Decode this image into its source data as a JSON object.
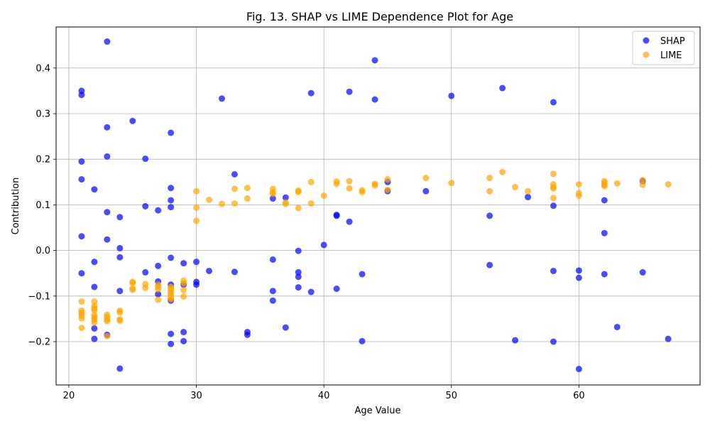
{
  "chart_data": {
    "type": "scatter",
    "title": "Fig. 13. SHAP vs LIME Dependence Plot for Age",
    "xlabel": "Age Value",
    "ylabel": "Contribution",
    "xlim": [
      19,
      69.5
    ],
    "ylim": [
      -0.295,
      0.49
    ],
    "xticks": [
      20,
      30,
      40,
      50,
      60
    ],
    "yticks": [
      -0.2,
      -0.1,
      0.0,
      0.1,
      0.2,
      0.3,
      0.4
    ],
    "ytick_labels": [
      "−0.2",
      "−0.1",
      "0.0",
      "0.1",
      "0.2",
      "0.3",
      "0.4"
    ],
    "grid": true,
    "legend_position": "top-right",
    "series": [
      {
        "name": "SHAP",
        "color": "#0000ff",
        "x": [
          21,
          21,
          21,
          21,
          21,
          21,
          22,
          22,
          22,
          22,
          22,
          23,
          23,
          23,
          23,
          23,
          23,
          24,
          24,
          24,
          24,
          24,
          25,
          26,
          26,
          26,
          27,
          27,
          27,
          27,
          28,
          28,
          28,
          28,
          28,
          28,
          28,
          28,
          28,
          29,
          29,
          29,
          29,
          30,
          30,
          30,
          31,
          32,
          33,
          33,
          34,
          34,
          36,
          36,
          36,
          36,
          37,
          37,
          38,
          38,
          38,
          38,
          39,
          39,
          40,
          41,
          41,
          41,
          42,
          42,
          43,
          43,
          44,
          44,
          45,
          45,
          48,
          50,
          53,
          53,
          54,
          55,
          56,
          58,
          58,
          58,
          58,
          60,
          60,
          60,
          62,
          62,
          62,
          63,
          65,
          65,
          67
        ],
        "y": [
          0.35,
          0.341,
          0.195,
          0.156,
          0.031,
          -0.05,
          0.134,
          -0.025,
          -0.08,
          -0.171,
          -0.194,
          0.458,
          0.27,
          0.206,
          0.084,
          0.024,
          -0.185,
          0.073,
          0.005,
          -0.015,
          -0.089,
          -0.259,
          0.284,
          0.201,
          0.097,
          -0.048,
          0.088,
          -0.034,
          -0.068,
          -0.096,
          0.258,
          0.137,
          0.11,
          0.095,
          -0.016,
          -0.075,
          -0.11,
          -0.183,
          -0.205,
          -0.028,
          -0.075,
          -0.179,
          -0.199,
          -0.025,
          -0.069,
          -0.075,
          -0.045,
          0.333,
          0.167,
          -0.047,
          -0.179,
          -0.185,
          0.114,
          -0.02,
          -0.089,
          -0.11,
          0.116,
          -0.169,
          -0.001,
          -0.048,
          -0.058,
          -0.081,
          0.345,
          -0.091,
          0.012,
          0.078,
          0.076,
          -0.084,
          0.348,
          0.063,
          -0.052,
          -0.199,
          0.417,
          0.331,
          0.15,
          0.13,
          0.13,
          0.339,
          0.076,
          -0.032,
          0.356,
          -0.197,
          0.117,
          0.325,
          0.098,
          -0.045,
          -0.2,
          -0.044,
          -0.06,
          -0.26,
          0.11,
          0.038,
          -0.052,
          -0.168,
          0.152,
          -0.048,
          -0.194
        ]
      },
      {
        "name": "LIME",
        "color": "#ffa500",
        "x": [
          21,
          21,
          21,
          21,
          21,
          21,
          22,
          22,
          22,
          22,
          22,
          22,
          22,
          22,
          23,
          23,
          23,
          23,
          23,
          24,
          24,
          24,
          24,
          25,
          25,
          25,
          25,
          26,
          26,
          27,
          27,
          27,
          27,
          28,
          28,
          28,
          28,
          28,
          28,
          28,
          29,
          29,
          29,
          29,
          30,
          30,
          30,
          31,
          32,
          33,
          33,
          34,
          34,
          36,
          36,
          36,
          37,
          37,
          38,
          38,
          38,
          39,
          39,
          40,
          41,
          41,
          42,
          42,
          43,
          43,
          44,
          44,
          45,
          45,
          48,
          50,
          53,
          53,
          54,
          55,
          56,
          58,
          58,
          58,
          58,
          58,
          60,
          60,
          60,
          62,
          62,
          62,
          62,
          63,
          65,
          65,
          67
        ],
        "y": [
          -0.112,
          -0.132,
          -0.137,
          -0.142,
          -0.149,
          -0.17,
          -0.112,
          -0.122,
          -0.127,
          -0.131,
          -0.142,
          -0.147,
          -0.152,
          -0.158,
          -0.141,
          -0.146,
          -0.151,
          -0.155,
          -0.188,
          -0.132,
          -0.136,
          -0.151,
          -0.154,
          -0.069,
          -0.071,
          -0.083,
          -0.086,
          -0.074,
          -0.082,
          -0.075,
          -0.079,
          -0.085,
          -0.108,
          -0.08,
          -0.083,
          -0.088,
          -0.092,
          -0.097,
          -0.103,
          -0.107,
          -0.066,
          -0.072,
          -0.087,
          -0.101,
          0.13,
          0.094,
          0.065,
          0.111,
          0.102,
          0.135,
          0.103,
          0.137,
          0.114,
          0.135,
          0.128,
          0.124,
          0.105,
          0.102,
          0.131,
          0.128,
          0.093,
          0.15,
          0.103,
          0.12,
          0.151,
          0.146,
          0.152,
          0.136,
          0.132,
          0.128,
          0.146,
          0.143,
          0.156,
          0.133,
          0.159,
          0.148,
          0.159,
          0.13,
          0.172,
          0.139,
          0.13,
          0.168,
          0.145,
          0.139,
          0.136,
          0.115,
          0.145,
          0.126,
          0.12,
          0.152,
          0.148,
          0.144,
          0.141,
          0.147,
          0.154,
          0.144,
          0.145
        ]
      }
    ]
  }
}
